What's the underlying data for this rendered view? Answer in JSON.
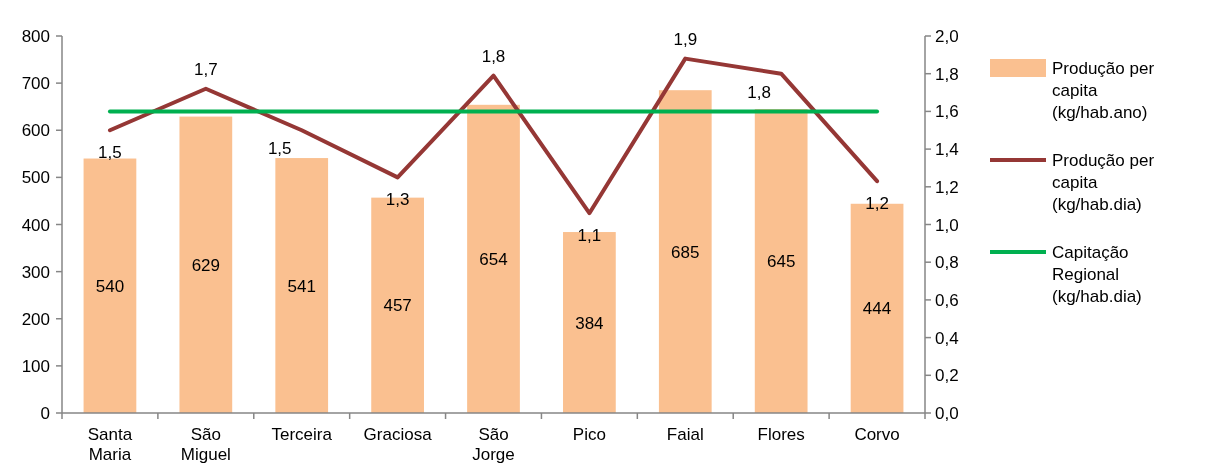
{
  "chart_data": {
    "type": "bar",
    "categories": [
      "Santa Maria",
      "São Miguel",
      "Terceira",
      "Graciosa",
      "São Jorge",
      "Pico",
      "Faial",
      "Flores",
      "Corvo"
    ],
    "series": [
      {
        "name": "Produção per capita (kg/hab.ano)",
        "color": "#fac090",
        "values": [
          540,
          629,
          541,
          457,
          654,
          384,
          685,
          645,
          444
        ],
        "value_labels": [
          "540",
          "629",
          "541",
          "457",
          "654",
          "384",
          "685",
          "645",
          "444"
        ]
      },
      {
        "name": "Produção per capita (kg/hab.dia)",
        "type": "line",
        "axis": "y2",
        "color": "#953735",
        "values": [
          1.5,
          1.72,
          1.5,
          1.25,
          1.79,
          1.06,
          1.88,
          1.8,
          1.23
        ],
        "value_labels": [
          "1,5",
          "1,7",
          "1,5",
          "1,3",
          "1,8",
          "1,1",
          "1,9",
          "1,8",
          "1,2"
        ]
      },
      {
        "name": "Capitação Regional (kg/hab.dia)",
        "type": "line",
        "axis": "y2",
        "color": "#00b050",
        "values": [
          1.6,
          1.6,
          1.6,
          1.6,
          1.6,
          1.6,
          1.6,
          1.6,
          1.6
        ]
      }
    ],
    "ylim": [
      0,
      800
    ],
    "yticks": [
      0,
      100,
      200,
      300,
      400,
      500,
      600,
      700,
      800
    ],
    "y2lim": [
      0,
      2.0
    ],
    "y2ticks": [
      {
        "value": 0,
        "label": "0,0"
      },
      {
        "value": 0.2,
        "label": "0,2"
      },
      {
        "value": 0.4,
        "label": "0,4"
      },
      {
        "value": 0.6,
        "label": "0,6"
      },
      {
        "value": 0.8,
        "label": "0,8"
      },
      {
        "value": 1.0,
        "label": "1,0"
      },
      {
        "value": 1.2,
        "label": "1,2"
      },
      {
        "value": 1.4,
        "label": "1,4"
      },
      {
        "value": 1.6,
        "label": "1,6"
      },
      {
        "value": 1.8,
        "label": "1,8"
      },
      {
        "value": 2.0,
        "label": "2,0"
      }
    ],
    "grid": false,
    "legend": "right",
    "marker": "none",
    "line_style": "solid"
  }
}
